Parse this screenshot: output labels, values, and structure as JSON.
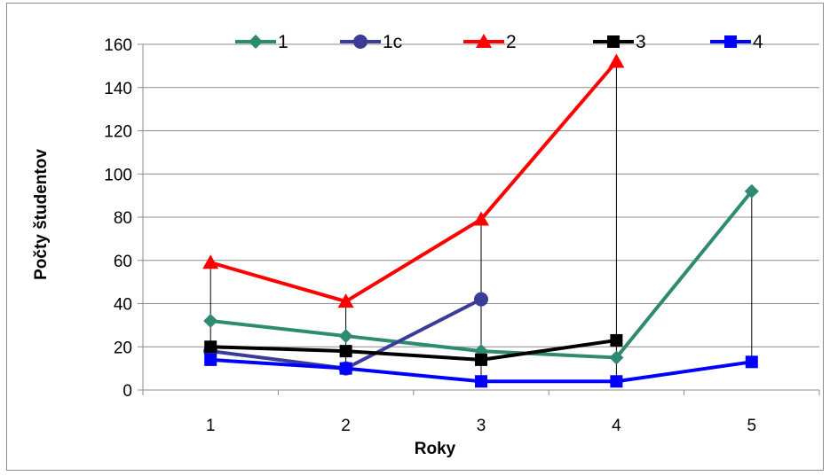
{
  "chart_data": {
    "type": "line",
    "title": "",
    "xlabel": "Roky",
    "ylabel": "Počty študentov",
    "categories": [
      "1",
      "2",
      "3",
      "4",
      "5"
    ],
    "ylim": [
      0,
      160
    ],
    "yticks": [
      0,
      20,
      40,
      60,
      80,
      100,
      120,
      140,
      160
    ],
    "grid": "horizontal",
    "legend_position": "top",
    "drop_lines": true,
    "series": [
      {
        "name": "1",
        "values": [
          32,
          25,
          18,
          15,
          92
        ],
        "color": "#2e8b72",
        "marker": "diamond"
      },
      {
        "name": "1c",
        "values": [
          18,
          10,
          42,
          null,
          null
        ],
        "color": "#3b3b98",
        "marker": "circle"
      },
      {
        "name": "2",
        "values": [
          59,
          41,
          79,
          152,
          null
        ],
        "color": "#ff0000",
        "marker": "triangle"
      },
      {
        "name": "3",
        "values": [
          20,
          18,
          14,
          23,
          null
        ],
        "color": "#000000",
        "marker": "square"
      },
      {
        "name": "4",
        "values": [
          14,
          10,
          4,
          4,
          13
        ],
        "color": "#0000ff",
        "marker": "square"
      }
    ]
  }
}
